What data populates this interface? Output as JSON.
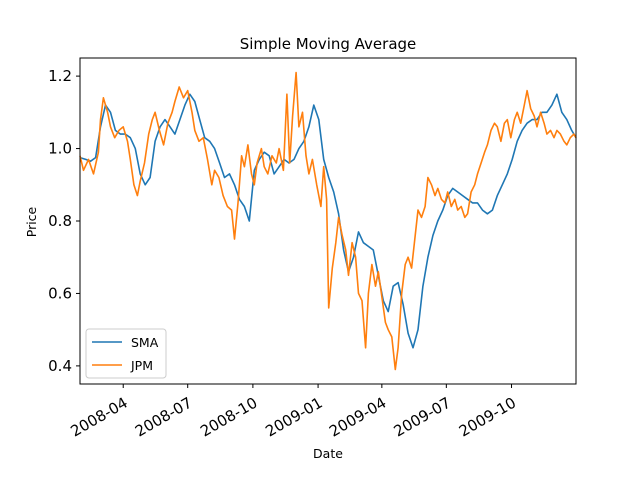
{
  "chart_data": {
    "type": "line",
    "title": "Simple Moving Average",
    "xlabel": "Date",
    "ylabel": "Price",
    "xlim": [
      "2008-01-31",
      "2009-12-31"
    ],
    "ylim": [
      0.35,
      1.25
    ],
    "x_ticks": [
      "2008-04",
      "2008-07",
      "2008-10",
      "2009-01",
      "2009-04",
      "2009-07",
      "2009-10"
    ],
    "y_ticks": [
      "0.4",
      "0.6",
      "0.8",
      "1.0",
      "1.2"
    ],
    "legend_position": "lower-left",
    "grid": false,
    "series": [
      {
        "name": "SMA",
        "color": "#1f77b4",
        "points": [
          [
            "2008-01-31",
            0.975
          ],
          [
            "2008-02-08",
            0.97
          ],
          [
            "2008-02-15",
            0.965
          ],
          [
            "2008-02-22",
            0.975
          ],
          [
            "2008-02-29",
            1.06
          ],
          [
            "2008-03-07",
            1.12
          ],
          [
            "2008-03-14",
            1.1
          ],
          [
            "2008-03-21",
            1.05
          ],
          [
            "2008-03-28",
            1.04
          ],
          [
            "2008-04-04",
            1.04
          ],
          [
            "2008-04-11",
            1.03
          ],
          [
            "2008-04-18",
            1.0
          ],
          [
            "2008-04-25",
            0.93
          ],
          [
            "2008-05-02",
            0.9
          ],
          [
            "2008-05-09",
            0.92
          ],
          [
            "2008-05-16",
            1.02
          ],
          [
            "2008-05-23",
            1.06
          ],
          [
            "2008-05-30",
            1.08
          ],
          [
            "2008-06-06",
            1.06
          ],
          [
            "2008-06-13",
            1.04
          ],
          [
            "2008-06-20",
            1.08
          ],
          [
            "2008-06-27",
            1.12
          ],
          [
            "2008-07-04",
            1.15
          ],
          [
            "2008-07-11",
            1.13
          ],
          [
            "2008-07-18",
            1.08
          ],
          [
            "2008-07-25",
            1.03
          ],
          [
            "2008-08-01",
            1.02
          ],
          [
            "2008-08-08",
            1.0
          ],
          [
            "2008-08-15",
            0.96
          ],
          [
            "2008-08-22",
            0.92
          ],
          [
            "2008-08-29",
            0.93
          ],
          [
            "2008-09-05",
            0.9
          ],
          [
            "2008-09-12",
            0.86
          ],
          [
            "2008-09-19",
            0.84
          ],
          [
            "2008-09-26",
            0.8
          ],
          [
            "2008-10-03",
            0.94
          ],
          [
            "2008-10-10",
            0.97
          ],
          [
            "2008-10-17",
            0.99
          ],
          [
            "2008-10-24",
            0.98
          ],
          [
            "2008-10-31",
            0.93
          ],
          [
            "2008-11-07",
            0.95
          ],
          [
            "2008-11-14",
            0.97
          ],
          [
            "2008-11-21",
            0.96
          ],
          [
            "2008-11-28",
            0.97
          ],
          [
            "2008-12-05",
            1.0
          ],
          [
            "2008-12-12",
            1.02
          ],
          [
            "2008-12-19",
            1.06
          ],
          [
            "2008-12-26",
            1.12
          ],
          [
            "2009-01-02",
            1.08
          ],
          [
            "2009-01-09",
            0.97
          ],
          [
            "2009-01-16",
            0.92
          ],
          [
            "2009-01-23",
            0.88
          ],
          [
            "2009-01-30",
            0.82
          ],
          [
            "2009-02-06",
            0.72
          ],
          [
            "2009-02-13",
            0.66
          ],
          [
            "2009-02-20",
            0.7
          ],
          [
            "2009-02-27",
            0.77
          ],
          [
            "2009-03-06",
            0.74
          ],
          [
            "2009-03-13",
            0.73
          ],
          [
            "2009-03-20",
            0.72
          ],
          [
            "2009-03-27",
            0.65
          ],
          [
            "2009-04-03",
            0.58
          ],
          [
            "2009-04-10",
            0.55
          ],
          [
            "2009-04-17",
            0.62
          ],
          [
            "2009-04-24",
            0.63
          ],
          [
            "2009-05-01",
            0.57
          ],
          [
            "2009-05-08",
            0.49
          ],
          [
            "2009-05-15",
            0.45
          ],
          [
            "2009-05-22",
            0.5
          ],
          [
            "2009-05-29",
            0.62
          ],
          [
            "2009-06-05",
            0.7
          ],
          [
            "2009-06-12",
            0.76
          ],
          [
            "2009-06-19",
            0.8
          ],
          [
            "2009-06-26",
            0.83
          ],
          [
            "2009-07-03",
            0.87
          ],
          [
            "2009-07-10",
            0.89
          ],
          [
            "2009-07-17",
            0.88
          ],
          [
            "2009-07-24",
            0.87
          ],
          [
            "2009-07-31",
            0.86
          ],
          [
            "2009-08-07",
            0.85
          ],
          [
            "2009-08-14",
            0.85
          ],
          [
            "2009-08-21",
            0.83
          ],
          [
            "2009-08-28",
            0.82
          ],
          [
            "2009-09-04",
            0.83
          ],
          [
            "2009-09-11",
            0.87
          ],
          [
            "2009-09-18",
            0.9
          ],
          [
            "2009-09-25",
            0.93
          ],
          [
            "2009-10-02",
            0.97
          ],
          [
            "2009-10-09",
            1.02
          ],
          [
            "2009-10-16",
            1.05
          ],
          [
            "2009-10-23",
            1.07
          ],
          [
            "2009-10-30",
            1.08
          ],
          [
            "2009-11-06",
            1.08
          ],
          [
            "2009-11-13",
            1.1
          ],
          [
            "2009-11-20",
            1.1
          ],
          [
            "2009-11-27",
            1.12
          ],
          [
            "2009-12-04",
            1.15
          ],
          [
            "2009-12-11",
            1.1
          ],
          [
            "2009-12-18",
            1.08
          ],
          [
            "2009-12-25",
            1.05
          ],
          [
            "2009-12-31",
            1.03
          ]
        ]
      },
      {
        "name": "JPM",
        "color": "#ff7f0e",
        "points": [
          [
            "2008-01-31",
            0.98
          ],
          [
            "2008-02-05",
            0.94
          ],
          [
            "2008-02-12",
            0.97
          ],
          [
            "2008-02-19",
            0.93
          ],
          [
            "2008-02-26",
            0.99
          ],
          [
            "2008-02-29",
            1.08
          ],
          [
            "2008-03-04",
            1.14
          ],
          [
            "2008-03-10",
            1.1
          ],
          [
            "2008-03-14",
            1.06
          ],
          [
            "2008-03-20",
            1.03
          ],
          [
            "2008-03-26",
            1.05
          ],
          [
            "2008-04-01",
            1.06
          ],
          [
            "2008-04-07",
            1.02
          ],
          [
            "2008-04-11",
            0.97
          ],
          [
            "2008-04-16",
            0.9
          ],
          [
            "2008-04-21",
            0.87
          ],
          [
            "2008-04-25",
            0.91
          ],
          [
            "2008-05-01",
            0.96
          ],
          [
            "2008-05-07",
            1.04
          ],
          [
            "2008-05-12",
            1.08
          ],
          [
            "2008-05-16",
            1.1
          ],
          [
            "2008-05-22",
            1.05
          ],
          [
            "2008-05-28",
            1.01
          ],
          [
            "2008-06-03",
            1.07
          ],
          [
            "2008-06-09",
            1.1
          ],
          [
            "2008-06-13",
            1.13
          ],
          [
            "2008-06-19",
            1.17
          ],
          [
            "2008-06-25",
            1.14
          ],
          [
            "2008-07-01",
            1.16
          ],
          [
            "2008-07-07",
            1.1
          ],
          [
            "2008-07-11",
            1.05
          ],
          [
            "2008-07-17",
            1.02
          ],
          [
            "2008-07-23",
            1.03
          ],
          [
            "2008-07-29",
            0.97
          ],
          [
            "2008-08-04",
            0.9
          ],
          [
            "2008-08-08",
            0.94
          ],
          [
            "2008-08-14",
            0.92
          ],
          [
            "2008-08-20",
            0.87
          ],
          [
            "2008-08-26",
            0.84
          ],
          [
            "2008-09-01",
            0.83
          ],
          [
            "2008-09-05",
            0.75
          ],
          [
            "2008-09-10",
            0.85
          ],
          [
            "2008-09-15",
            0.98
          ],
          [
            "2008-09-19",
            0.95
          ],
          [
            "2008-09-24",
            1.01
          ],
          [
            "2008-09-29",
            0.93
          ],
          [
            "2008-10-03",
            0.9
          ],
          [
            "2008-10-07",
            0.96
          ],
          [
            "2008-10-13",
            1.0
          ],
          [
            "2008-10-17",
            0.95
          ],
          [
            "2008-10-22",
            0.93
          ],
          [
            "2008-10-28",
            0.98
          ],
          [
            "2008-11-03",
            0.96
          ],
          [
            "2008-11-07",
            1.0
          ],
          [
            "2008-11-13",
            0.94
          ],
          [
            "2008-11-18",
            1.15
          ],
          [
            "2008-11-22",
            0.96
          ],
          [
            "2008-11-26",
            1.09
          ],
          [
            "2008-12-01",
            1.21
          ],
          [
            "2008-12-05",
            1.06
          ],
          [
            "2008-12-10",
            1.1
          ],
          [
            "2008-12-15",
            0.98
          ],
          [
            "2008-12-19",
            0.93
          ],
          [
            "2008-12-24",
            0.97
          ],
          [
            "2008-12-30",
            0.9
          ],
          [
            "2009-01-05",
            0.84
          ],
          [
            "2009-01-09",
            0.95
          ],
          [
            "2009-01-13",
            0.86
          ],
          [
            "2009-01-16",
            0.56
          ],
          [
            "2009-01-21",
            0.67
          ],
          [
            "2009-01-26",
            0.74
          ],
          [
            "2009-01-30",
            0.81
          ],
          [
            "2009-02-04",
            0.76
          ],
          [
            "2009-02-09",
            0.72
          ],
          [
            "2009-02-13",
            0.65
          ],
          [
            "2009-02-18",
            0.74
          ],
          [
            "2009-02-23",
            0.7
          ],
          [
            "2009-02-27",
            0.6
          ],
          [
            "2009-03-04",
            0.58
          ],
          [
            "2009-03-09",
            0.45
          ],
          [
            "2009-03-13",
            0.6
          ],
          [
            "2009-03-18",
            0.68
          ],
          [
            "2009-03-23",
            0.62
          ],
          [
            "2009-03-27",
            0.66
          ],
          [
            "2009-04-01",
            0.59
          ],
          [
            "2009-04-06",
            0.52
          ],
          [
            "2009-04-10",
            0.5
          ],
          [
            "2009-04-15",
            0.48
          ],
          [
            "2009-04-20",
            0.39
          ],
          [
            "2009-04-24",
            0.45
          ],
          [
            "2009-04-29",
            0.6
          ],
          [
            "2009-05-04",
            0.68
          ],
          [
            "2009-05-08",
            0.7
          ],
          [
            "2009-05-13",
            0.67
          ],
          [
            "2009-05-18",
            0.76
          ],
          [
            "2009-05-22",
            0.83
          ],
          [
            "2009-05-27",
            0.81
          ],
          [
            "2009-06-01",
            0.84
          ],
          [
            "2009-06-05",
            0.92
          ],
          [
            "2009-06-10",
            0.9
          ],
          [
            "2009-06-15",
            0.87
          ],
          [
            "2009-06-19",
            0.89
          ],
          [
            "2009-06-24",
            0.86
          ],
          [
            "2009-06-29",
            0.85
          ],
          [
            "2009-07-03",
            0.88
          ],
          [
            "2009-07-08",
            0.84
          ],
          [
            "2009-07-13",
            0.86
          ],
          [
            "2009-07-17",
            0.83
          ],
          [
            "2009-07-22",
            0.84
          ],
          [
            "2009-07-27",
            0.81
          ],
          [
            "2009-07-31",
            0.82
          ],
          [
            "2009-08-05",
            0.88
          ],
          [
            "2009-08-10",
            0.9
          ],
          [
            "2009-08-14",
            0.93
          ],
          [
            "2009-08-19",
            0.96
          ],
          [
            "2009-08-24",
            0.99
          ],
          [
            "2009-08-28",
            1.01
          ],
          [
            "2009-09-02",
            1.05
          ],
          [
            "2009-09-07",
            1.07
          ],
          [
            "2009-09-11",
            1.06
          ],
          [
            "2009-09-16",
            1.02
          ],
          [
            "2009-09-21",
            1.07
          ],
          [
            "2009-09-25",
            1.08
          ],
          [
            "2009-09-30",
            1.03
          ],
          [
            "2009-10-05",
            1.08
          ],
          [
            "2009-10-09",
            1.1
          ],
          [
            "2009-10-14",
            1.07
          ],
          [
            "2009-10-19",
            1.12
          ],
          [
            "2009-10-23",
            1.16
          ],
          [
            "2009-10-28",
            1.11
          ],
          [
            "2009-11-02",
            1.09
          ],
          [
            "2009-11-06",
            1.06
          ],
          [
            "2009-11-11",
            1.1
          ],
          [
            "2009-11-16",
            1.07
          ],
          [
            "2009-11-20",
            1.04
          ],
          [
            "2009-11-25",
            1.05
          ],
          [
            "2009-11-30",
            1.03
          ],
          [
            "2009-12-04",
            1.05
          ],
          [
            "2009-12-09",
            1.04
          ],
          [
            "2009-12-14",
            1.02
          ],
          [
            "2009-12-18",
            1.01
          ],
          [
            "2009-12-23",
            1.03
          ],
          [
            "2009-12-28",
            1.04
          ],
          [
            "2009-12-31",
            1.03
          ]
        ]
      }
    ]
  }
}
